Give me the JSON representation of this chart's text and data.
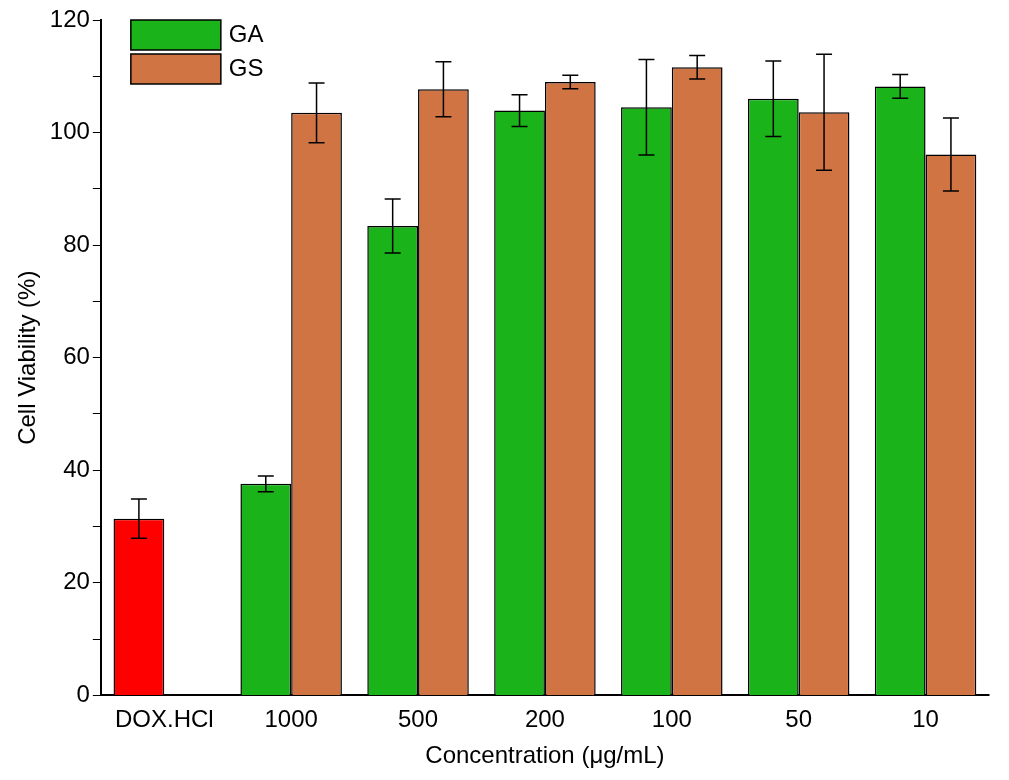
{
  "chart_data": {
    "type": "bar",
    "xlabel": "Concentration (μg/mL)",
    "ylabel": "Cell Viability (%)",
    "categories": [
      "DOX.HCl",
      "1000",
      "500",
      "200",
      "100",
      "50",
      "10"
    ],
    "series": [
      {
        "name": "GA",
        "color": "#1ab31a",
        "colors": [
          "#ff0000",
          "#1ab31a",
          "#1ab31a",
          "#1ab31a",
          "#1ab31a",
          "#1ab31a",
          "#1ab31a"
        ],
        "values": [
          31.4,
          37.6,
          83.4,
          103.9,
          104.5,
          106.0,
          108.2
        ],
        "errors": [
          3.5,
          1.4,
          4.8,
          2.8,
          8.5,
          6.7,
          2.1
        ]
      },
      {
        "name": "GS",
        "color": "#d07444",
        "values": [
          0,
          103.5,
          107.7,
          109.0,
          111.6,
          103.6,
          96.1
        ],
        "errors": [
          null,
          5.3,
          4.9,
          1.2,
          2.1,
          10.3,
          6.5
        ]
      }
    ],
    "ylim": [
      0,
      120
    ],
    "yticks": [
      0,
      {
        "value": 10,
        "label": null
      },
      20,
      {
        "value": 30,
        "label": null
      },
      40,
      {
        "value": 50,
        "label": null
      },
      60,
      {
        "value": 70,
        "label": null
      },
      80,
      {
        "value": 90,
        "label": null
      },
      100,
      {
        "value": 110,
        "label": null
      },
      120
    ],
    "grid": false,
    "legend": "top left"
  }
}
